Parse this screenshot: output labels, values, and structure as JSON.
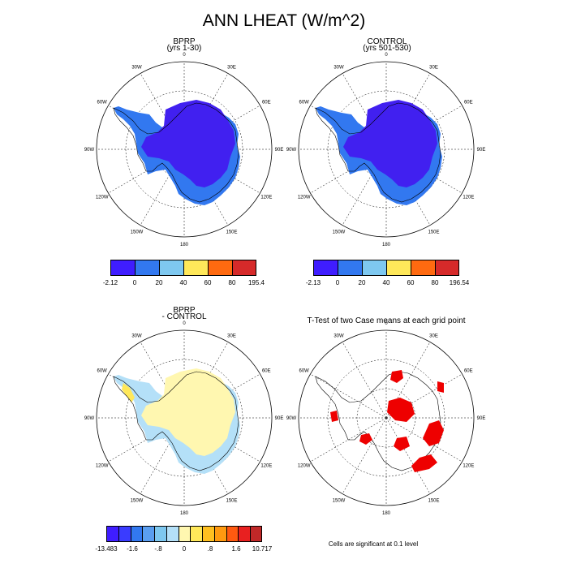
{
  "main_title": "ANN LHEAT (W/m^2)",
  "panels": {
    "bprp": {
      "title_line1": "BPRP",
      "title_line2": "(yrs 1-30)"
    },
    "control": {
      "title_line1": "CONTROL",
      "title_line2": "(yrs 501-530)"
    },
    "diff": {
      "title_line1": "BPRP",
      "title_line2": "- CONTROL"
    },
    "ttest": {
      "title_line1": "T-Test of two Case means at each grid point"
    }
  },
  "longitude_labels": [
    "0",
    "30E",
    "60E",
    "90E",
    "120E",
    "150E",
    "180",
    "150W",
    "120W",
    "90W",
    "60W",
    "30W"
  ],
  "legends": {
    "bprp": {
      "labels": [
        "-2.12",
        "0",
        "20",
        "40",
        "60",
        "80",
        "195.4"
      ],
      "colors": [
        "#3f1dff",
        "#3278f0",
        "#7ec8f0",
        "#ffe85a",
        "#ff6a10",
        "#d62a2a"
      ]
    },
    "control": {
      "labels": [
        "-2.13",
        "0",
        "20",
        "40",
        "60",
        "80",
        "196.54"
      ],
      "colors": [
        "#3f1dff",
        "#3278f0",
        "#7ec8f0",
        "#ffe85a",
        "#ff6a10",
        "#d62a2a"
      ]
    },
    "diff": {
      "labels": [
        "-13.483",
        "-1.6",
        "-.8",
        "0",
        ".8",
        "1.6",
        "10.717"
      ],
      "colors": [
        "#3f1dff",
        "#3a3cff",
        "#3278f0",
        "#5a9ef0",
        "#7ec8f0",
        "#b4e0f8",
        "#fff7b0",
        "#ffe85a",
        "#ffc020",
        "#ff9a10",
        "#ff5a10",
        "#e82020",
        "#c02828"
      ]
    }
  },
  "significance_note": "Cells are significant at 0.1 level",
  "fill_colors": {
    "ice_dark": "#4120f0",
    "ice_mid": "#3278f0",
    "diff_yellow": "#fff7b0",
    "diff_blue": "#b4e0f8",
    "diff_yellow2": "#ffe85a",
    "significant": "#ee0000"
  }
}
